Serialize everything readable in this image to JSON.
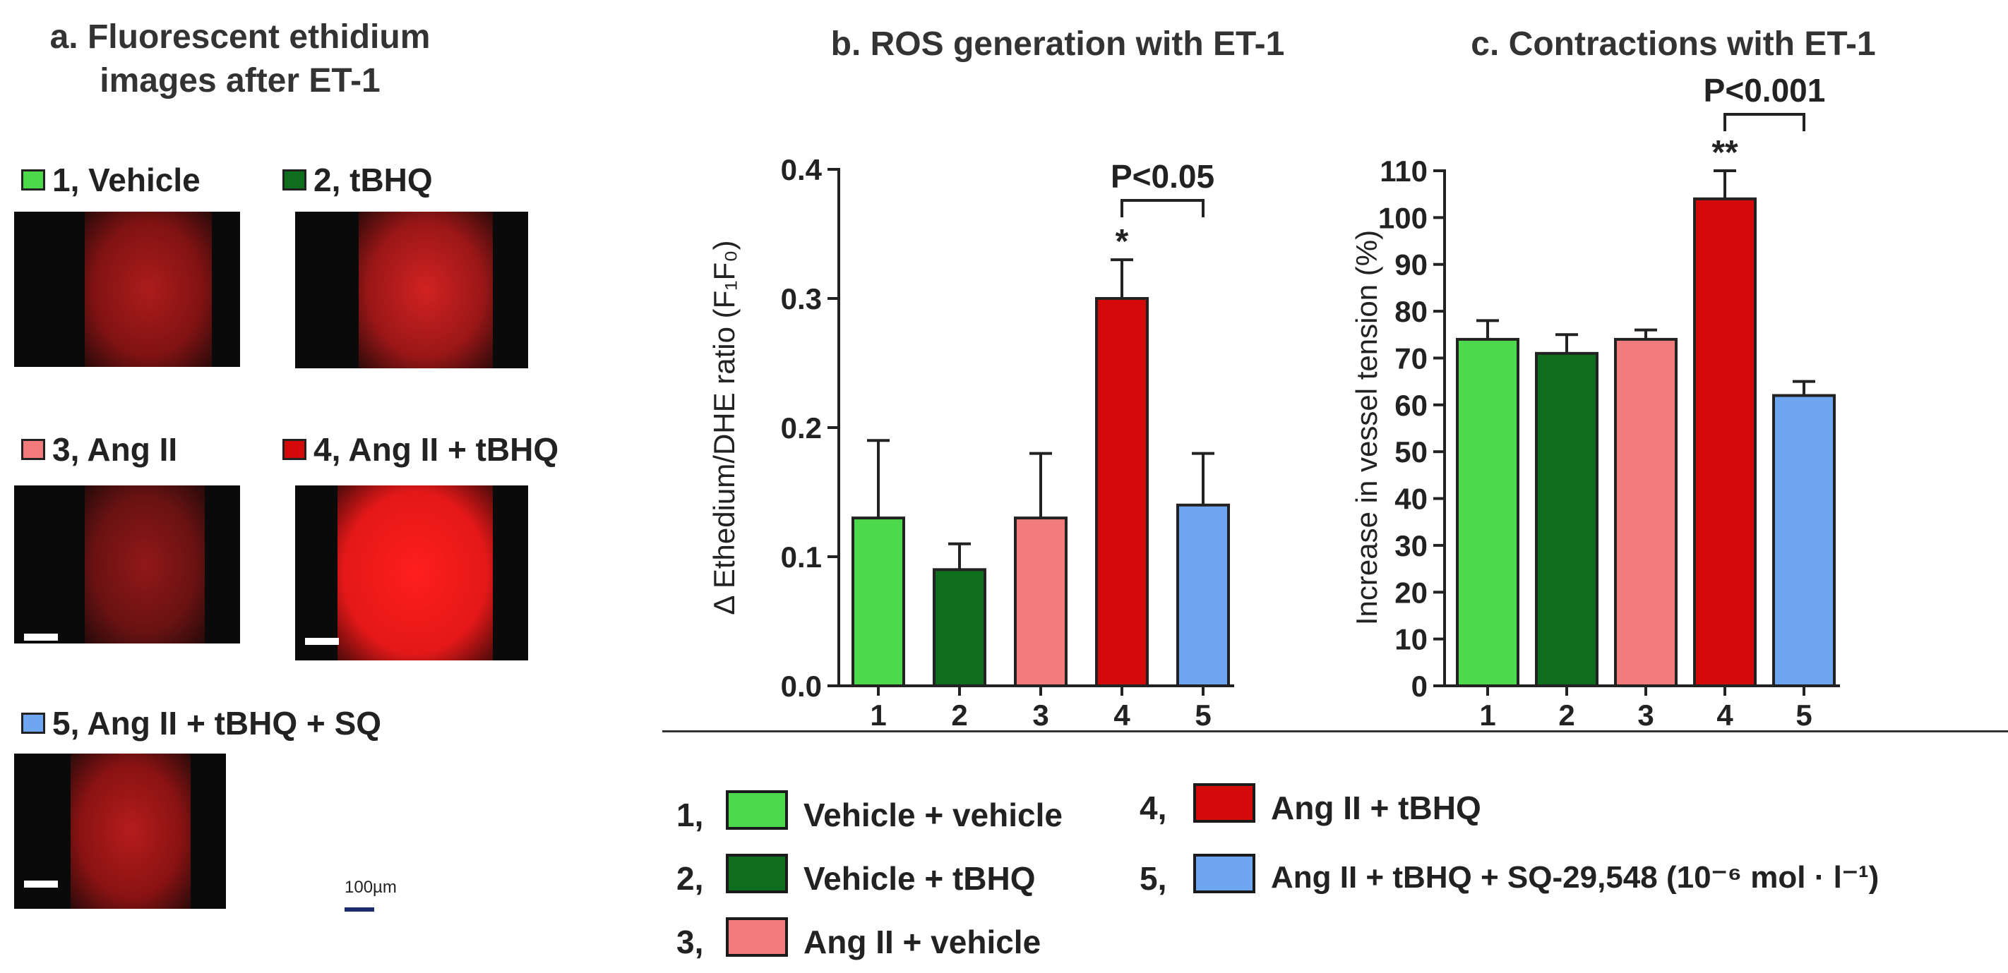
{
  "panel_a": {
    "title_line1": "a. Fluorescent ethidium",
    "title_line2": "images after ET-1",
    "images": [
      {
        "label": "1, Vehicle",
        "color": "#4cd94c"
      },
      {
        "label": "2, tBHQ",
        "color": "#0f6e1e"
      },
      {
        "label": "3, Ang II",
        "color": "#f27c7c"
      },
      {
        "label": "4, Ang II + tBHQ",
        "color": "#d40a0a"
      },
      {
        "label": "5, Ang II + tBHQ + SQ",
        "color": "#6fa6f2"
      }
    ],
    "scale_label": "100µm"
  },
  "colors": {
    "vehicle_vehicle": "#4cd94c",
    "vehicle_tbhq": "#0f6e1e",
    "angii_vehicle": "#f27c7c",
    "angii_tbhq": "#d40a0a",
    "angii_tbhq_sq": "#6fa6f2"
  },
  "chart_data": [
    {
      "type": "bar",
      "title": "b. ROS generation with ET-1",
      "ylabel": "Δ Ethedium/DHE ratio (F₁F₀)",
      "categories": [
        "1",
        "2",
        "3",
        "4",
        "5"
      ],
      "values": [
        0.13,
        0.09,
        0.13,
        0.3,
        0.14
      ],
      "errors": [
        0.06,
        0.02,
        0.05,
        0.03,
        0.04
      ],
      "ylim": [
        0,
        0.4
      ],
      "yticks": [
        "0.0",
        "0.1",
        "0.2",
        "0.3",
        "0.4"
      ],
      "significance": {
        "marker": "*",
        "bar_index": 3,
        "comparison": [
          3,
          4
        ],
        "label": "P<0.05"
      }
    },
    {
      "type": "bar",
      "title": "c. Contractions with ET-1",
      "ylabel": "Increase in vessel tension (%)",
      "categories": [
        "1",
        "2",
        "3",
        "4",
        "5"
      ],
      "values": [
        74,
        71,
        74,
        104,
        62
      ],
      "errors": [
        4,
        4,
        2,
        6,
        3
      ],
      "ylim": [
        0,
        110
      ],
      "yticks": [
        "0",
        "10",
        "20",
        "30",
        "40",
        "50",
        "60",
        "70",
        "80",
        "90",
        "100",
        "110"
      ],
      "significance": {
        "marker": "**",
        "bar_index": 3,
        "comparison": [
          3,
          4
        ],
        "label": "P<0.001"
      }
    }
  ],
  "legend": [
    {
      "num": "1,",
      "label": "Vehicle + vehicle",
      "color": "#4cd94c"
    },
    {
      "num": "2,",
      "label": "Vehicle + tBHQ",
      "color": "#0f6e1e"
    },
    {
      "num": "3,",
      "label": "Ang II + vehicle",
      "color": "#f27c7c"
    },
    {
      "num": "4,",
      "label": "Ang II + tBHQ",
      "color": "#d40a0a"
    },
    {
      "num": "5,",
      "label": "Ang II + tBHQ +  SQ-29,548 (10⁻⁶ mol · l⁻¹)",
      "color": "#6fa6f2"
    }
  ]
}
